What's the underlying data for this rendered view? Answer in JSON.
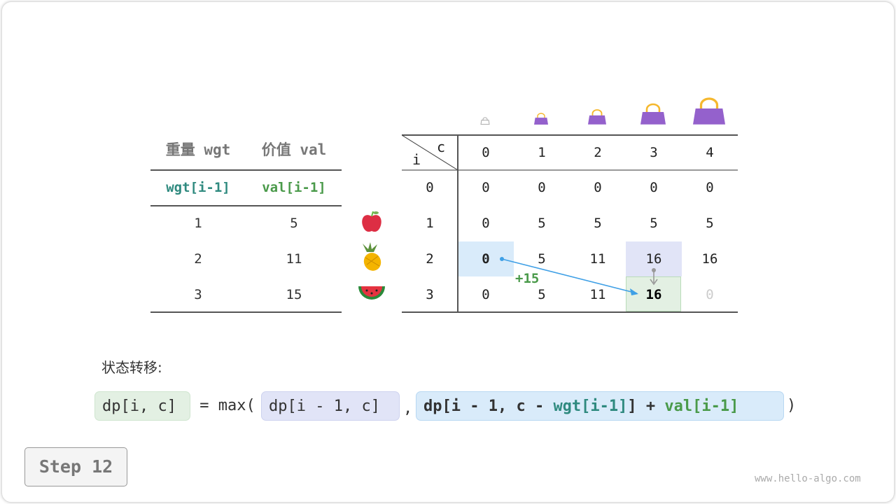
{
  "left_table": {
    "headers": [
      "重量 wgt",
      "价值 val"
    ],
    "subheaders": [
      "wgt[i-1]",
      "val[i-1]"
    ],
    "rows": [
      [
        "1",
        "5"
      ],
      [
        "2",
        "11"
      ],
      [
        "3",
        "15"
      ]
    ]
  },
  "items": [
    "apple",
    "pineapple",
    "watermelon"
  ],
  "dp_table": {
    "corner_c": "c",
    "corner_i": "i",
    "col_headers": [
      "0",
      "1",
      "2",
      "3",
      "4"
    ],
    "row_headers": [
      "0",
      "1",
      "2",
      "3"
    ],
    "rows": [
      [
        "0",
        "0",
        "0",
        "0",
        "0"
      ],
      [
        "0",
        "5",
        "5",
        "5",
        "5"
      ],
      [
        "0",
        "5",
        "11",
        "16",
        "16"
      ],
      [
        "0",
        "5",
        "11",
        "16",
        "0"
      ]
    ]
  },
  "annotation": "+15",
  "section_label": "状态转移:",
  "formula": {
    "lhs": "dp[i, c]",
    "eq": " = max(",
    "opt1": "dp[i - 1, c]",
    "comma": ",",
    "opt2_a": "dp[i - 1, c - ",
    "opt2_wgt": "wgt[i-1]",
    "opt2_b": "] + ",
    "opt2_val": "val[i-1]",
    "close": ")"
  },
  "step_button": "Step 12",
  "watermark": "www.hello-algo.com",
  "colors": {
    "teal": "#2f8a7f",
    "green": "#4a9a4a",
    "blue_hl": "#d9ebfa",
    "purple_hl": "#e1e4f7",
    "green_hl": "#e3f0e3",
    "arrow": "#3fa0e6",
    "bag": "#9461cc"
  }
}
